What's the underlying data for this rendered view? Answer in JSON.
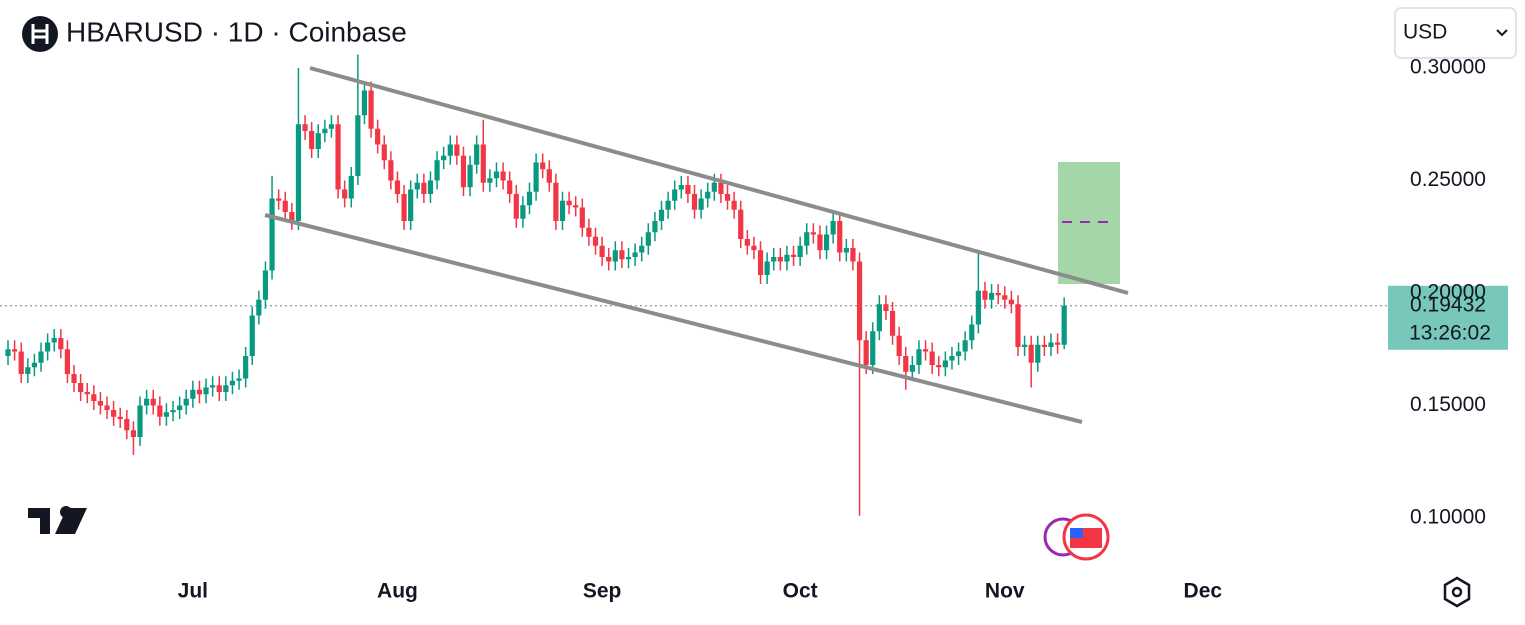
{
  "chart_data": {
    "type": "candlestick",
    "title": "HBARUSD · 1D · Coinbase",
    "currency": "USD",
    "last_price": 0.19432,
    "countdown": "13:26:02",
    "up_color": "#089981",
    "down_color": "#f23645",
    "xlim": [
      -1.212,
      208.6
    ],
    "xticks": [
      {
        "value": 28,
        "label": "Jul"
      },
      {
        "value": 59,
        "label": "Aug"
      },
      {
        "value": 90,
        "label": "Sep"
      },
      {
        "value": 120,
        "label": "Oct"
      },
      {
        "value": 151,
        "label": "Nov"
      },
      {
        "value": 181,
        "label": "Dec"
      }
    ],
    "ylim": [
      0.0769,
      0.3302
    ],
    "yticks": [
      {
        "value": 0.1,
        "label": "0.10000"
      },
      {
        "value": 0.15,
        "label": "0.15000"
      },
      {
        "value": 0.2,
        "label": "0.20000"
      },
      {
        "value": 0.25,
        "label": "0.25000"
      },
      {
        "value": 0.3,
        "label": "0.30000"
      }
    ],
    "open": [
      0.172,
      0.175,
      0.174,
      0.164,
      0.167,
      0.169,
      0.174,
      0.178,
      0.18,
      0.175,
      0.164,
      0.16,
      0.156,
      0.155,
      0.152,
      0.15,
      0.148,
      0.145,
      0.144,
      0.139,
      0.136,
      0.15,
      0.153,
      0.15,
      0.145,
      0.147,
      0.148,
      0.15,
      0.153,
      0.157,
      0.155,
      0.158,
      0.159,
      0.156,
      0.159,
      0.161,
      0.162,
      0.172,
      0.19,
      0.197,
      0.21,
      0.242,
      0.241,
      0.236,
      0.232,
      0.275,
      0.272,
      0.264,
      0.271,
      0.273,
      0.275,
      0.246,
      0.242,
      0.252,
      0.279,
      0.29,
      0.273,
      0.266,
      0.259,
      0.25,
      0.244,
      0.232,
      0.246,
      0.249,
      0.244,
      0.25,
      0.259,
      0.261,
      0.266,
      0.261,
      0.247,
      0.257,
      0.266,
      0.249,
      0.251,
      0.254,
      0.25,
      0.244,
      0.233,
      0.239,
      0.245,
      0.258,
      0.255,
      0.249,
      0.232,
      0.241,
      0.239,
      0.238,
      0.229,
      0.225,
      0.221,
      0.216,
      0.214,
      0.219,
      0.215,
      0.216,
      0.218,
      0.221,
      0.227,
      0.232,
      0.237,
      0.241,
      0.246,
      0.248,
      0.244,
      0.237,
      0.242,
      0.245,
      0.249,
      0.244,
      0.241,
      0.237,
      0.224,
      0.221,
      0.219,
      0.208,
      0.214,
      0.216,
      0.214,
      0.217,
      0.216,
      0.221,
      0.227,
      0.226,
      0.219,
      0.226,
      0.232,
      0.218,
      0.22,
      0.214,
      0.179,
      0.168,
      0.183,
      0.195,
      0.192,
      0.181,
      0.172,
      0.165,
      0.168,
      0.175,
      0.174,
      0.168,
      0.167,
      0.17,
      0.172,
      0.174,
      0.179,
      0.186,
      0.201,
      0.197,
      0.2,
      0.199,
      0.197,
      0.195,
      0.176,
      0.177,
      0.169,
      0.177,
      0.176,
      0.178,
      0.177
    ],
    "high": [
      0.179,
      0.179,
      0.178,
      0.171,
      0.173,
      0.178,
      0.182,
      0.184,
      0.184,
      0.179,
      0.168,
      0.164,
      0.16,
      0.159,
      0.156,
      0.154,
      0.152,
      0.149,
      0.148,
      0.143,
      0.154,
      0.157,
      0.157,
      0.154,
      0.151,
      0.152,
      0.154,
      0.157,
      0.161,
      0.161,
      0.162,
      0.163,
      0.163,
      0.163,
      0.165,
      0.166,
      0.176,
      0.194,
      0.201,
      0.214,
      0.252,
      0.246,
      0.245,
      0.24,
      0.3,
      0.279,
      0.276,
      0.275,
      0.277,
      0.279,
      0.279,
      0.25,
      0.256,
      0.306,
      0.294,
      0.294,
      0.277,
      0.27,
      0.263,
      0.254,
      0.248,
      0.25,
      0.253,
      0.253,
      0.254,
      0.263,
      0.265,
      0.27,
      0.27,
      0.265,
      0.261,
      0.27,
      0.277,
      0.255,
      0.258,
      0.258,
      0.254,
      0.248,
      0.243,
      0.249,
      0.262,
      0.262,
      0.259,
      0.253,
      0.245,
      0.245,
      0.243,
      0.242,
      0.233,
      0.229,
      0.225,
      0.22,
      0.223,
      0.223,
      0.22,
      0.222,
      0.225,
      0.231,
      0.236,
      0.241,
      0.245,
      0.25,
      0.252,
      0.252,
      0.248,
      0.246,
      0.249,
      0.253,
      0.253,
      0.248,
      0.245,
      0.241,
      0.228,
      0.225,
      0.223,
      0.218,
      0.22,
      0.22,
      0.221,
      0.221,
      0.225,
      0.231,
      0.231,
      0.23,
      0.23,
      0.236,
      0.236,
      0.224,
      0.224,
      0.218,
      0.183,
      0.187,
      0.199,
      0.199,
      0.196,
      0.185,
      0.176,
      0.172,
      0.179,
      0.179,
      0.178,
      0.172,
      0.174,
      0.176,
      0.178,
      0.183,
      0.19,
      0.218,
      0.205,
      0.204,
      0.204,
      0.203,
      0.201,
      0.199,
      0.181,
      0.181,
      0.181,
      0.181,
      0.182,
      0.182,
      0.198
    ],
    "low": [
      0.168,
      0.17,
      0.16,
      0.16,
      0.163,
      0.165,
      0.17,
      0.174,
      0.171,
      0.16,
      0.156,
      0.152,
      0.151,
      0.148,
      0.146,
      0.144,
      0.141,
      0.14,
      0.135,
      0.128,
      0.132,
      0.146,
      0.146,
      0.141,
      0.141,
      0.143,
      0.144,
      0.146,
      0.149,
      0.151,
      0.151,
      0.154,
      0.152,
      0.152,
      0.155,
      0.157,
      0.158,
      0.168,
      0.186,
      0.193,
      0.206,
      0.237,
      0.232,
      0.228,
      0.228,
      0.268,
      0.26,
      0.26,
      0.267,
      0.269,
      0.242,
      0.238,
      0.238,
      0.248,
      0.275,
      0.269,
      0.262,
      0.255,
      0.246,
      0.24,
      0.228,
      0.228,
      0.242,
      0.24,
      0.24,
      0.246,
      0.255,
      0.257,
      0.257,
      0.243,
      0.243,
      0.253,
      0.245,
      0.245,
      0.247,
      0.246,
      0.24,
      0.229,
      0.229,
      0.235,
      0.241,
      0.251,
      0.245,
      0.228,
      0.228,
      0.235,
      0.234,
      0.225,
      0.221,
      0.217,
      0.212,
      0.21,
      0.21,
      0.211,
      0.211,
      0.212,
      0.214,
      0.217,
      0.223,
      0.228,
      0.233,
      0.237,
      0.242,
      0.24,
      0.233,
      0.233,
      0.238,
      0.241,
      0.24,
      0.237,
      0.233,
      0.22,
      0.217,
      0.215,
      0.204,
      0.204,
      0.21,
      0.21,
      0.21,
      0.212,
      0.212,
      0.217,
      0.222,
      0.215,
      0.215,
      0.222,
      0.214,
      0.214,
      0.21,
      0.101,
      0.164,
      0.164,
      0.179,
      0.188,
      0.177,
      0.168,
      0.157,
      0.161,
      0.164,
      0.17,
      0.164,
      0.163,
      0.163,
      0.166,
      0.168,
      0.17,
      0.175,
      0.182,
      0.193,
      0.193,
      0.195,
      0.193,
      0.191,
      0.172,
      0.172,
      0.158,
      0.165,
      0.172,
      0.172,
      0.173,
      0.175
    ],
    "close": [
      0.175,
      0.174,
      0.164,
      0.167,
      0.169,
      0.174,
      0.178,
      0.18,
      0.175,
      0.164,
      0.16,
      0.156,
      0.155,
      0.152,
      0.15,
      0.148,
      0.145,
      0.144,
      0.139,
      0.136,
      0.15,
      0.153,
      0.15,
      0.145,
      0.147,
      0.148,
      0.15,
      0.153,
      0.157,
      0.155,
      0.158,
      0.159,
      0.156,
      0.159,
      0.161,
      0.162,
      0.172,
      0.19,
      0.197,
      0.21,
      0.242,
      0.241,
      0.236,
      0.232,
      0.275,
      0.272,
      0.264,
      0.271,
      0.273,
      0.275,
      0.246,
      0.242,
      0.252,
      0.279,
      0.29,
      0.273,
      0.266,
      0.259,
      0.25,
      0.244,
      0.232,
      0.246,
      0.249,
      0.244,
      0.25,
      0.259,
      0.261,
      0.266,
      0.261,
      0.247,
      0.257,
      0.266,
      0.249,
      0.251,
      0.254,
      0.25,
      0.244,
      0.233,
      0.239,
      0.245,
      0.258,
      0.255,
      0.249,
      0.232,
      0.241,
      0.239,
      0.238,
      0.229,
      0.225,
      0.221,
      0.216,
      0.214,
      0.219,
      0.215,
      0.216,
      0.218,
      0.221,
      0.227,
      0.232,
      0.237,
      0.241,
      0.246,
      0.248,
      0.244,
      0.237,
      0.242,
      0.245,
      0.249,
      0.244,
      0.241,
      0.237,
      0.224,
      0.221,
      0.219,
      0.208,
      0.214,
      0.216,
      0.214,
      0.217,
      0.216,
      0.221,
      0.227,
      0.226,
      0.219,
      0.226,
      0.232,
      0.218,
      0.22,
      0.214,
      0.179,
      0.168,
      0.183,
      0.195,
      0.192,
      0.181,
      0.172,
      0.165,
      0.168,
      0.175,
      0.174,
      0.168,
      0.167,
      0.17,
      0.172,
      0.174,
      0.179,
      0.186,
      0.201,
      0.197,
      0.2,
      0.199,
      0.197,
      0.195,
      0.176,
      0.177,
      0.169,
      0.177,
      0.176,
      0.178,
      0.177,
      0.19432
    ]
  }
}
